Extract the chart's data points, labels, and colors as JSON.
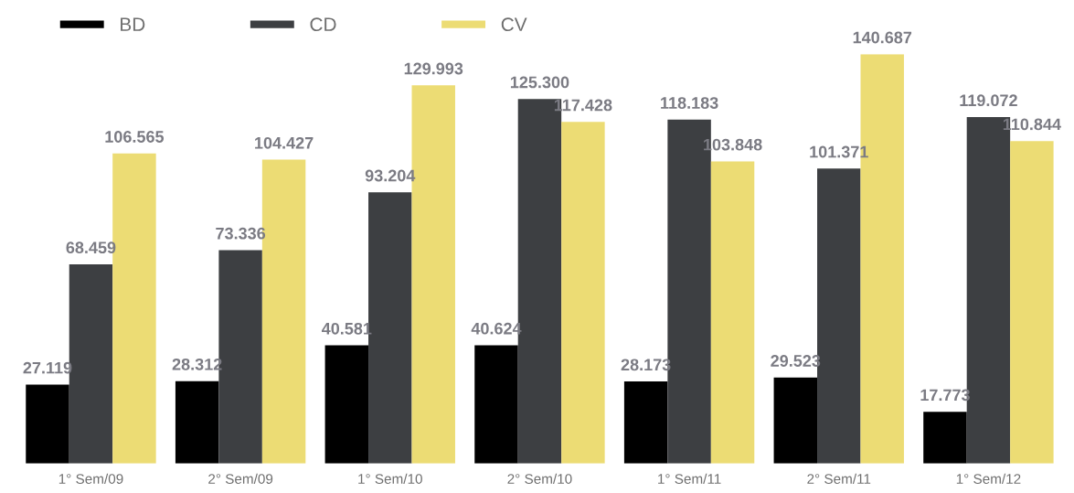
{
  "chart_data": {
    "type": "bar",
    "categories": [
      "1° Sem/09",
      "2° Sem/09",
      "1° Sem/10",
      "2° Sem/10",
      "1° Sem/11",
      "2° Sem/11",
      "1° Sem/12"
    ],
    "series": [
      {
        "name": "BD",
        "color": "#000000",
        "values": [
          27119,
          28312,
          40581,
          40624,
          28173,
          29523,
          17773
        ],
        "value_labels": [
          "27.119",
          "28.312",
          "40.581",
          "40.624",
          "28.173",
          "29.523",
          "17.773"
        ]
      },
      {
        "name": "CD",
        "color": "#3d3f42",
        "values": [
          68459,
          73336,
          93204,
          125300,
          118183,
          101371,
          119072
        ],
        "value_labels": [
          "68.459",
          "73.336",
          "93.204",
          "125.300",
          "118.183",
          "101.371",
          "119.072"
        ]
      },
      {
        "name": "CV",
        "color": "#ecdc74",
        "values": [
          106565,
          104427,
          129993,
          117428,
          103848,
          140687,
          110844
        ],
        "value_labels": [
          "106.565",
          "104.427",
          "129.993",
          "117.428",
          "103.848",
          "140.687",
          "110.844"
        ]
      }
    ],
    "legend": "top left",
    "grid": false
  }
}
